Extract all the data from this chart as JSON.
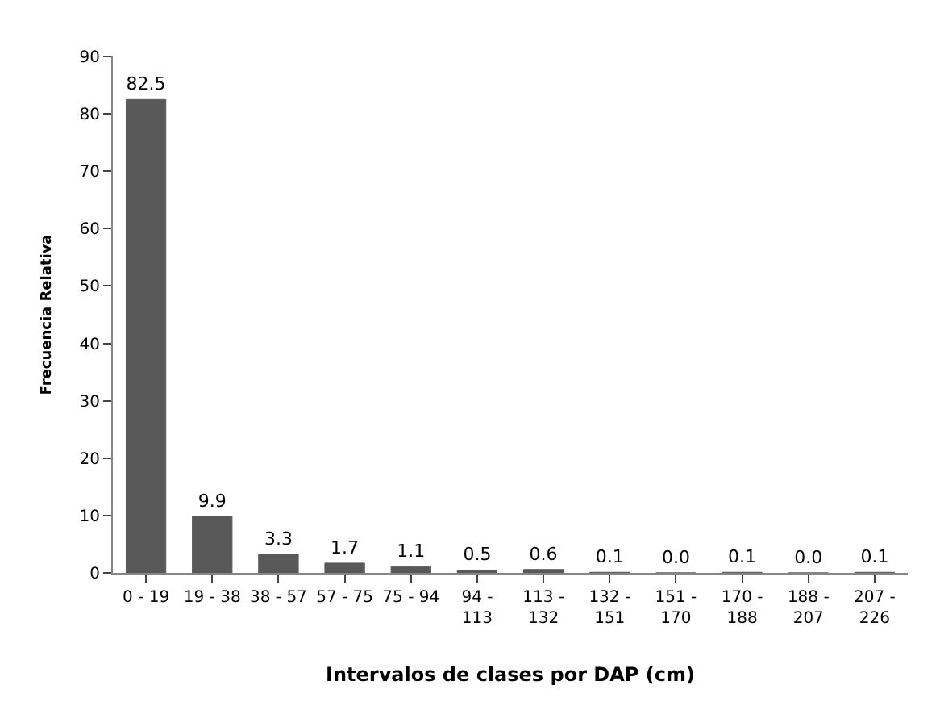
{
  "chart_data": {
    "type": "bar",
    "xlabel": "Intervalos de clases por DAP (cm)",
    "ylabel": "Frecuencia Relativa",
    "categories": [
      "0 - 19",
      "19 - 38",
      "38 - 57",
      "57 - 75",
      "75 - 94",
      "94 - 113",
      "113 - 132",
      "132 - 151",
      "151 - 170",
      "170 - 188",
      "188 - 207",
      "207 - 226"
    ],
    "values": [
      82.5,
      9.9,
      3.3,
      1.7,
      1.1,
      0.5,
      0.6,
      0.1,
      0.0,
      0.1,
      0.0,
      0.1
    ],
    "value_labels": [
      "82.5",
      "9.9",
      "3.3",
      "1.7",
      "1.1",
      "0.5",
      "0.6",
      "0.1",
      "0.0",
      "0.1",
      "0.0",
      "0.1"
    ],
    "color": "#595959",
    "ylim": [
      0,
      90
    ],
    "yticks": [
      0,
      10,
      20,
      30,
      40,
      50,
      60,
      70,
      80,
      90
    ]
  }
}
